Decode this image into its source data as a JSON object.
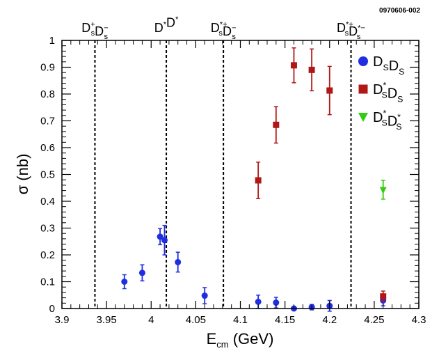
{
  "figure_id": "0970606-002",
  "chart_data": {
    "type": "scatter",
    "xlabel": "E",
    "xlabel_sub": "cm",
    "xlabel_unit": " (GeV)",
    "ylabel": "σ  (nb)",
    "xlim": [
      3.9,
      4.3
    ],
    "ylim": [
      0,
      1
    ],
    "x_ticks": [
      "3.9",
      "3.95",
      "4",
      "4.05",
      "4.1",
      "4.15",
      "4.2",
      "4.25",
      "4.3"
    ],
    "y_ticks": [
      "0",
      "0.1",
      "0.2",
      "0.3",
      "0.4",
      "0.5",
      "0.6",
      "0.7",
      "0.8",
      "0.9",
      "1"
    ],
    "grid": false,
    "legend_position": "top-right",
    "thresholds": [
      {
        "x": 3.937,
        "parts": [
          {
            "t": "D",
            "sub": "s",
            "sup": "+"
          },
          {
            "t": "D",
            "sub": "s",
            "sup": "−"
          }
        ]
      },
      {
        "x": 4.017,
        "parts": [
          {
            "t": "D",
            "sup": "*"
          },
          {
            "t": "D",
            "sup": "*"
          }
        ]
      },
      {
        "x": 4.081,
        "parts": [
          {
            "t": "D",
            "sub": "s",
            "sup": "*+"
          },
          {
            "t": "D",
            "sub": "s",
            "sup": "−"
          }
        ]
      },
      {
        "x": 4.224,
        "parts": [
          {
            "t": "D",
            "sub": "s",
            "sup": "*+"
          },
          {
            "t": "D",
            "sub": "s",
            "sup": "*−"
          }
        ]
      }
    ],
    "series": [
      {
        "name": "DsDs",
        "label_parts": [
          {
            "t": "D",
            "sub": "S"
          },
          {
            "t": "D",
            "sub": "S"
          }
        ],
        "marker": "circle",
        "color": "#1f2ee0",
        "x": [
          3.97,
          3.99,
          4.01,
          4.015,
          4.03,
          4.06,
          4.12,
          4.14,
          4.16,
          4.18,
          4.2,
          4.26
        ],
        "y": [
          0.1,
          0.133,
          0.268,
          0.255,
          0.173,
          0.048,
          0.025,
          0.022,
          0.0,
          0.005,
          0.01,
          0.03
        ],
        "yerr": [
          0.026,
          0.03,
          0.03,
          0.055,
          0.037,
          0.03,
          0.025,
          0.02,
          0.005,
          0.01,
          0.02,
          0.02
        ]
      },
      {
        "name": "Ds*Ds",
        "label_parts": [
          {
            "t": "D",
            "sub": "S",
            "sup": "*"
          },
          {
            "t": "D",
            "sub": "S"
          }
        ],
        "marker": "square",
        "color": "#b01818",
        "x": [
          4.12,
          4.14,
          4.16,
          4.18,
          4.2,
          4.26
        ],
        "y": [
          0.478,
          0.685,
          0.907,
          0.89,
          0.813,
          0.045
        ],
        "yerr": [
          0.068,
          0.068,
          0.065,
          0.078,
          0.09,
          0.02
        ]
      },
      {
        "name": "Ds*Ds*",
        "label_parts": [
          {
            "t": "D",
            "sub": "S",
            "sup": "*"
          },
          {
            "t": "D",
            "sub": "S",
            "sup": "*"
          }
        ],
        "marker": "triangle",
        "color": "#33cc11",
        "x": [
          4.26
        ],
        "y": [
          0.443
        ],
        "yerr": [
          0.035
        ]
      }
    ]
  }
}
